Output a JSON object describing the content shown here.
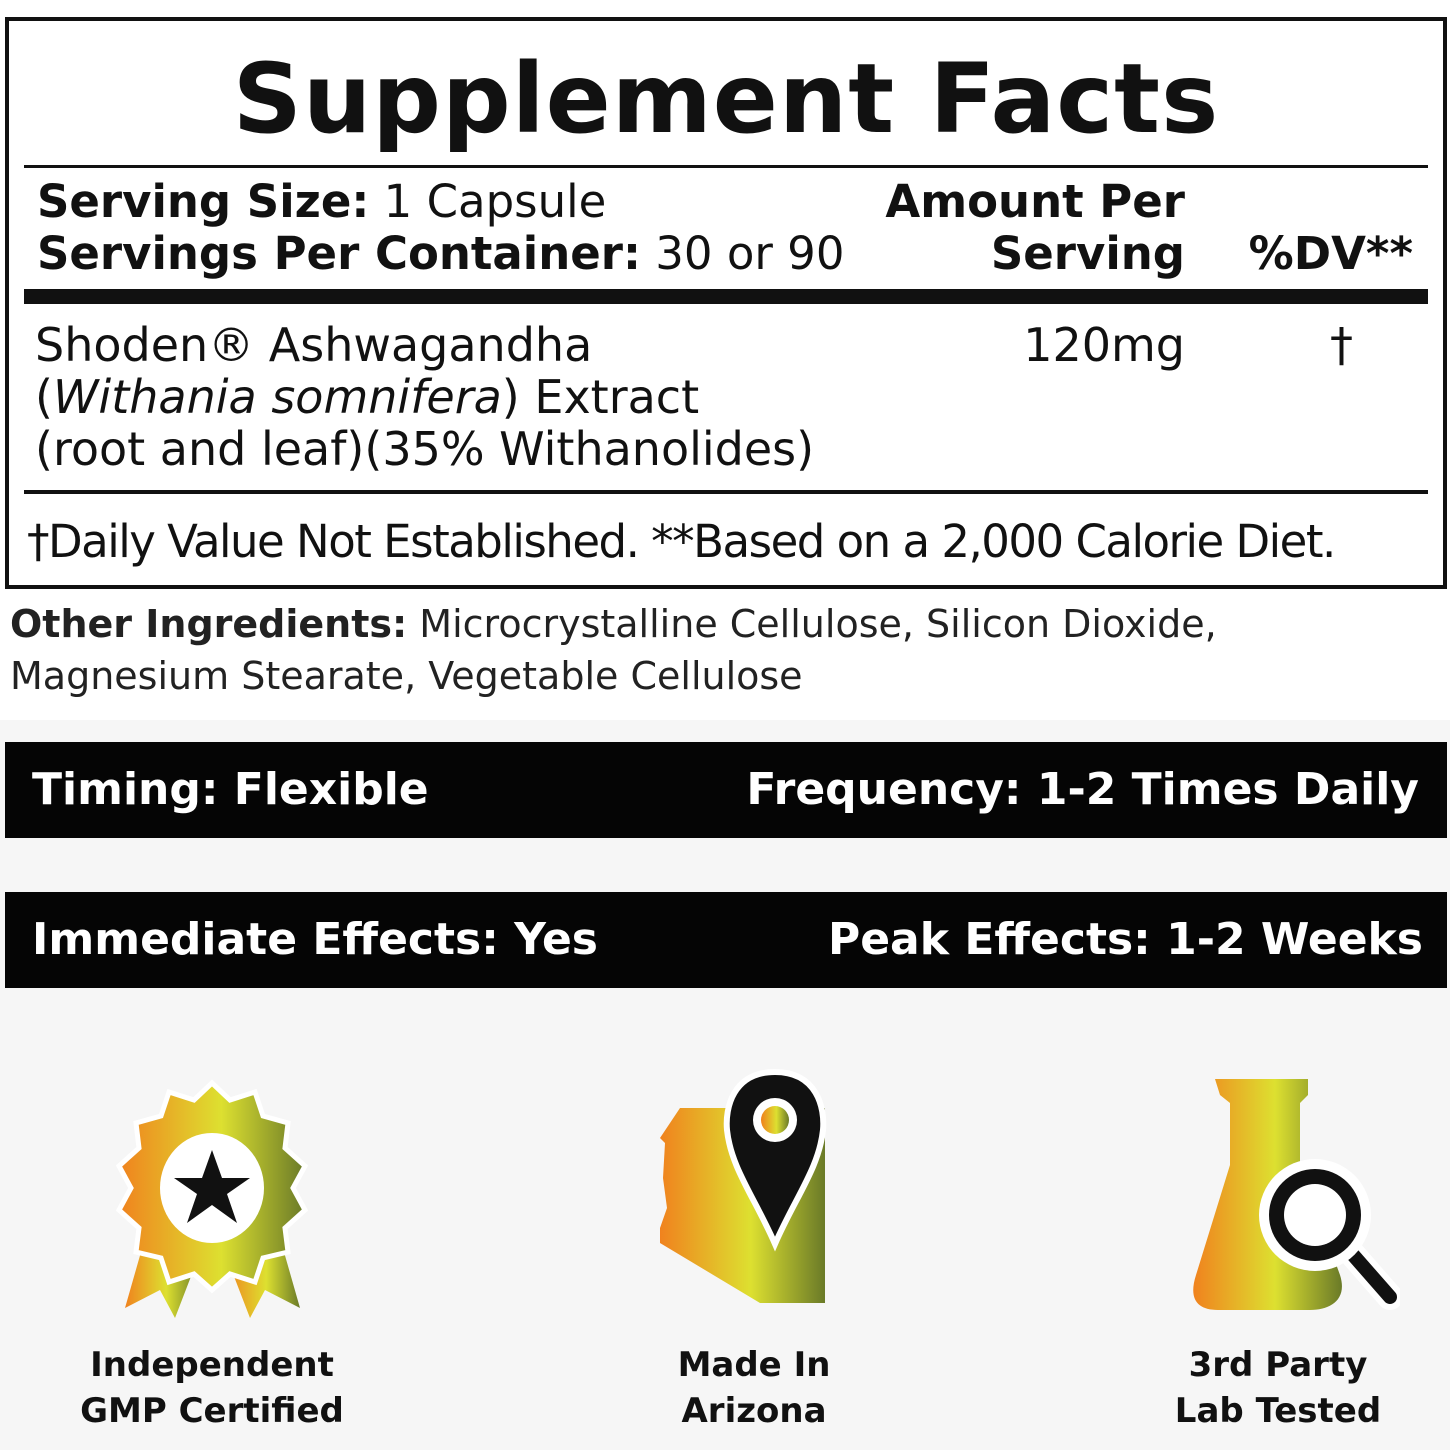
{
  "panel": {
    "title": "Supplement Facts",
    "serving_size_label": "Serving Size:",
    "serving_size_value": "1 Capsule",
    "servings_label": "Servings Per Container:",
    "servings_value": "30 or 90",
    "amount_header_1": "Amount Per",
    "amount_header_2": "Serving",
    "dv_header": "%DV**",
    "ingredient": {
      "name": "Shoden® Ashwagandha",
      "latin": "Withania somnifera",
      "extract": "Extract",
      "line3": "(root and leaf)(35% Withanolides)",
      "amount": "120mg",
      "dv": "†"
    },
    "footnote": "†Daily Value Not Established. **Based on a 2,000 Calorie Diet."
  },
  "other_ingredients": {
    "label": "Other Ingredients:",
    "value": "Microcrystalline Cellulose, Silicon Dioxide, Magnesium Stearate, Vegetable Cellulose"
  },
  "bars": [
    {
      "left": "Timing: Flexible",
      "right": "Frequency: 1-2 Times Daily"
    },
    {
      "left": "Immediate Effects: Yes",
      "right": "Peak Effects: 1-2 Weeks"
    }
  ],
  "badges": [
    {
      "icon": "award-ribbon-star-icon",
      "line1": "Independent",
      "line2": "GMP Certified"
    },
    {
      "icon": "arizona-map-pin-icon",
      "line1": "Made In",
      "line2": "Arizona"
    },
    {
      "icon": "flask-magnifier-icon",
      "line1": "3rd Party",
      "line2": "Lab Tested"
    }
  ],
  "colors": {
    "gradient_start": "#f0821e",
    "gradient_mid": "#dde030",
    "gradient_end": "#6a7a28",
    "bar_bg": "#050505"
  }
}
